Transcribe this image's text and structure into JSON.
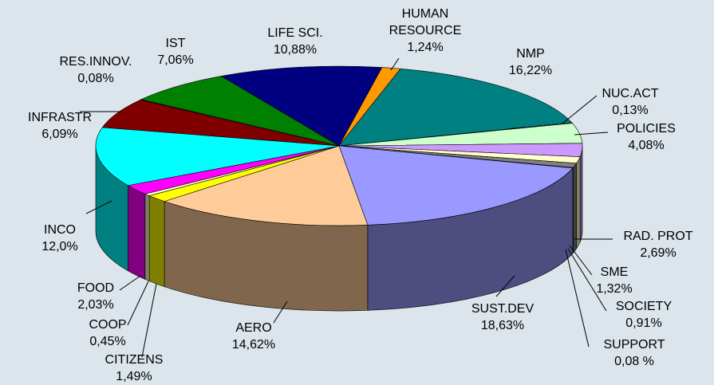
{
  "chart_data": {
    "type": "pie3d",
    "categories": [
      "LIFE SCI.",
      "HUMAN RESOURCE",
      "NMP",
      "NUC.ACT",
      "POLICIES",
      "RAD. PROT",
      "SME",
      "SOCIETY",
      "SUPPORT",
      "SUST.DEV",
      "AERO",
      "CITIZENS",
      "COOP",
      "FOOD",
      "INCO",
      "INFRASTR",
      "RES.INNOV.",
      "IST"
    ],
    "values": [
      10.88,
      1.24,
      16.22,
      0.13,
      4.08,
      2.69,
      1.32,
      0.91,
      0.08,
      18.63,
      14.62,
      1.49,
      0.45,
      2.03,
      12.0,
      6.09,
      0.08,
      7.06
    ],
    "value_labels": [
      "10,88%",
      "1,24%",
      "16,22%",
      "0,13%",
      "4,08%",
      "2,69%",
      "1,32%",
      "0,91%",
      "0,08 %",
      "18,63%",
      "14,62%",
      "1,49%",
      "0,45%",
      "2,03%",
      "12,0%",
      "6,09%",
      "0,08%",
      "7,06%"
    ],
    "colors": [
      "#000080",
      "#ff9900",
      "#008080",
      "#ccffff",
      "#ccffcc",
      "#cc99ff",
      "#ffffcc",
      "#808080",
      "#c0c0c0",
      "#9999ff",
      "#ffcc99",
      "#ffff00",
      "#ffffcc",
      "#ff00ff",
      "#00ffff",
      "#800000",
      "#c0c0c0",
      "#008000"
    ]
  }
}
